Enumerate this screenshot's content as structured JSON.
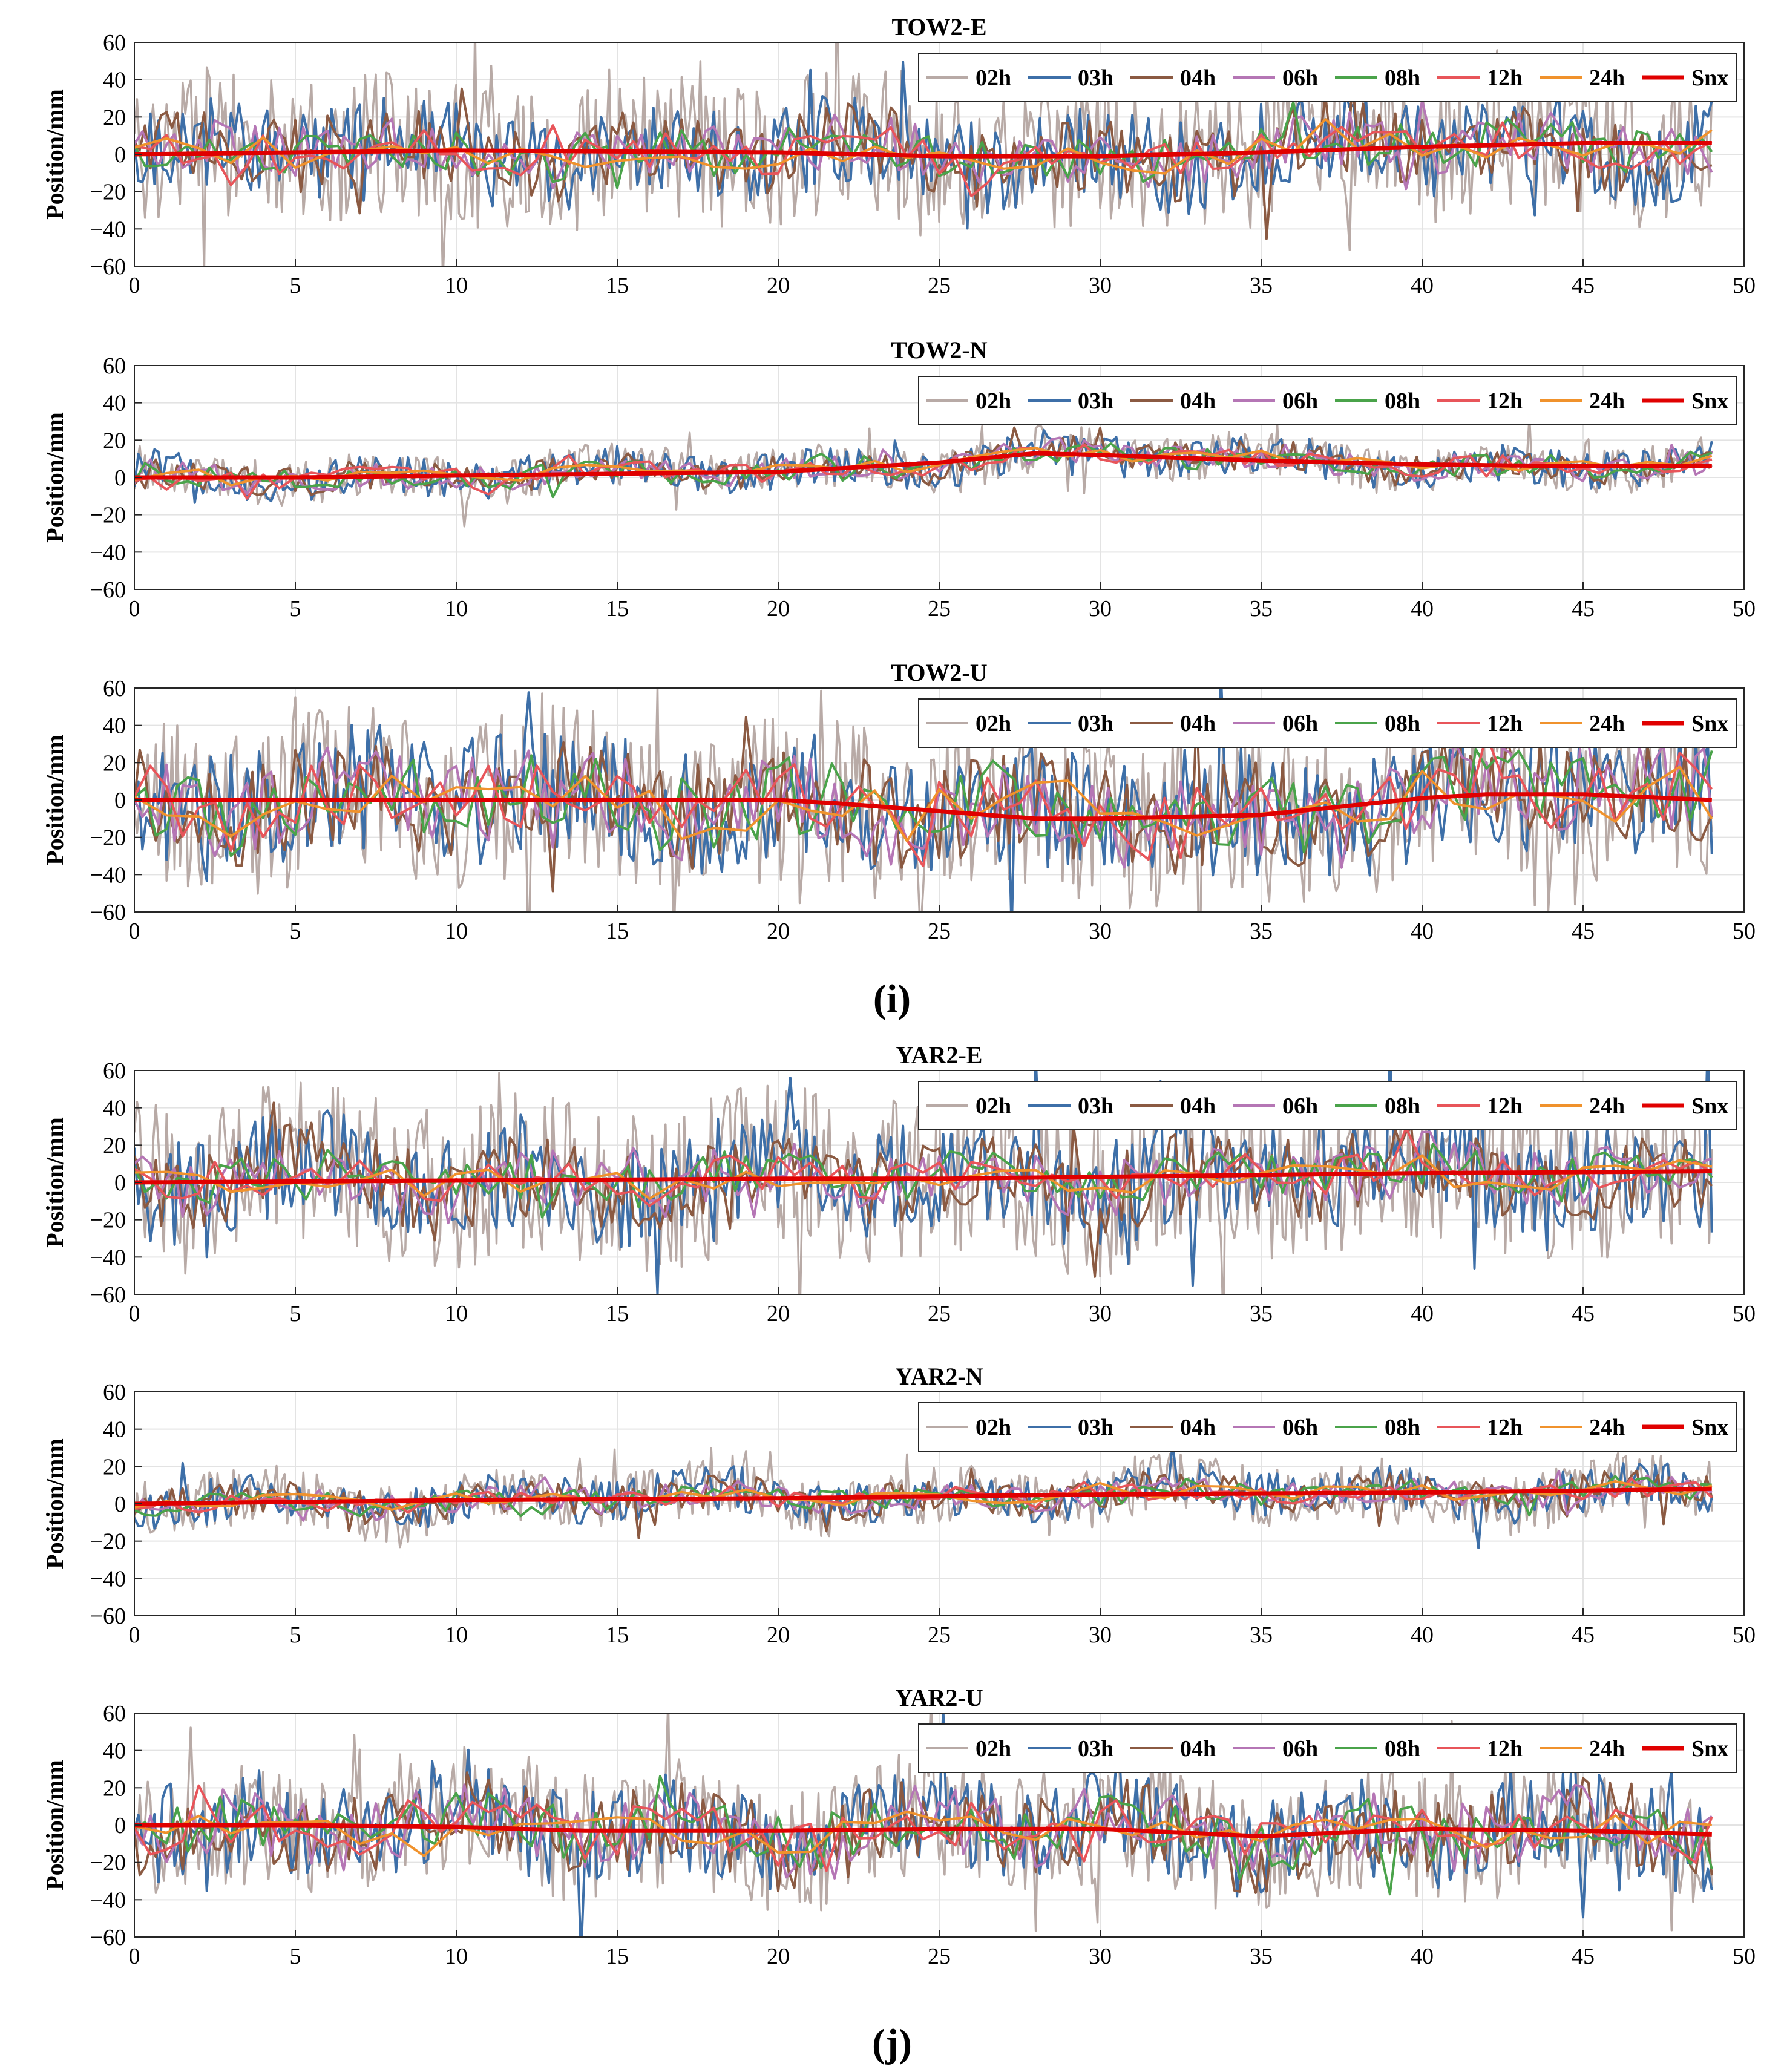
{
  "figure": {
    "group_labels": [
      "(i)",
      "(j)"
    ],
    "legend": [
      {
        "label": "02h",
        "color": "#b8aaa6"
      },
      {
        "label": "03h",
        "color": "#3d6fa8"
      },
      {
        "label": "04h",
        "color": "#8b5a42"
      },
      {
        "label": "06h",
        "color": "#b576b5"
      },
      {
        "label": "08h",
        "color": "#4aa34a"
      },
      {
        "label": "12h",
        "color": "#e8555a"
      },
      {
        "label": "24h",
        "color": "#f0922c"
      },
      {
        "label": "Snx",
        "color": "#e00000"
      }
    ]
  },
  "chart_data": [
    {
      "type": "line",
      "title": "TOW2-E",
      "xlabel": "",
      "ylabel": "Position/mm",
      "xlim": [
        0,
        50
      ],
      "ylim": [
        -60,
        60
      ],
      "xticks": [
        0,
        5,
        10,
        15,
        20,
        25,
        30,
        35,
        40,
        45,
        50
      ],
      "yticks": [
        60,
        40,
        20,
        0,
        -20,
        -40,
        -60
      ],
      "snx": {
        "x": [
          0,
          5,
          10,
          15,
          20,
          25,
          30,
          35,
          40,
          45,
          49
        ],
        "y": [
          0,
          1,
          2,
          1.5,
          1,
          -1,
          -1,
          1,
          4,
          6,
          6
        ]
      },
      "amplitude": {
        "02h": 40,
        "03h": 25,
        "04h": 20,
        "06h": 15,
        "08h": 13,
        "12h": 11,
        "24h": 8
      }
    },
    {
      "type": "line",
      "title": "TOW2-N",
      "xlabel": "",
      "ylabel": "Position/mm",
      "xlim": [
        0,
        50
      ],
      "ylim": [
        -60,
        60
      ],
      "xticks": [
        0,
        5,
        10,
        15,
        20,
        25,
        30,
        35,
        40,
        45,
        50
      ],
      "yticks": [
        60,
        40,
        20,
        0,
        -20,
        -40,
        -60
      ],
      "snx": {
        "x": [
          0,
          5,
          10,
          15,
          20,
          25,
          28,
          30,
          35,
          40,
          45,
          49
        ],
        "y": [
          0,
          0,
          1,
          2,
          3,
          8,
          13,
          12,
          9,
          7,
          6,
          6
        ]
      },
      "amplitude": {
        "02h": 12,
        "03h": 10,
        "04h": 8,
        "06h": 7,
        "08h": 6,
        "12h": 5,
        "24h": 4
      }
    },
    {
      "type": "line",
      "title": "TOW2-U",
      "xlabel": "",
      "ylabel": "Position/mm",
      "xlim": [
        0,
        50
      ],
      "ylim": [
        -60,
        60
      ],
      "xticks": [
        0,
        5,
        10,
        15,
        20,
        25,
        30,
        35,
        40,
        45,
        50
      ],
      "yticks": [
        60,
        40,
        20,
        0,
        -20,
        -40,
        -60
      ],
      "snx": {
        "x": [
          0,
          5,
          10,
          15,
          20,
          22,
          25,
          28,
          30,
          35,
          40,
          42,
          45,
          49
        ],
        "y": [
          0,
          0,
          0,
          0,
          0,
          -2,
          -6,
          -10,
          -10,
          -8,
          1,
          3,
          3,
          0
        ]
      },
      "amplitude": {
        "02h": 45,
        "03h": 35,
        "04h": 28,
        "06h": 24,
        "08h": 22,
        "12h": 20,
        "24h": 15
      }
    },
    {
      "type": "line",
      "title": "YAR2-E",
      "xlabel": "",
      "ylabel": "Position/mm",
      "xlim": [
        0,
        50
      ],
      "ylim": [
        -60,
        60
      ],
      "xticks": [
        0,
        5,
        10,
        15,
        20,
        25,
        30,
        35,
        40,
        45,
        50
      ],
      "yticks": [
        60,
        40,
        20,
        0,
        -20,
        -40,
        -60
      ],
      "snx": {
        "x": [
          0,
          5,
          10,
          15,
          20,
          25,
          30,
          35,
          40,
          45,
          49
        ],
        "y": [
          0,
          0.5,
          1,
          1.5,
          2,
          2,
          3,
          4,
          5,
          5.5,
          6
        ]
      },
      "amplitude": {
        "02h": 45,
        "03h": 30,
        "04h": 22,
        "06h": 15,
        "08h": 12,
        "12h": 10,
        "24h": 7
      }
    },
    {
      "type": "line",
      "title": "YAR2-N",
      "xlabel": "",
      "ylabel": "Position/mm",
      "xlim": [
        0,
        50
      ],
      "ylim": [
        -60,
        60
      ],
      "xticks": [
        0,
        5,
        10,
        15,
        20,
        25,
        30,
        35,
        40,
        45,
        50
      ],
      "yticks": [
        60,
        40,
        20,
        0,
        -20,
        -40,
        -60
      ],
      "snx": {
        "x": [
          0,
          5,
          10,
          15,
          20,
          25,
          30,
          35,
          40,
          45,
          49
        ],
        "y": [
          0,
          1,
          2,
          2.5,
          3,
          4,
          5,
          5.5,
          6,
          7,
          8
        ]
      },
      "amplitude": {
        "02h": 16,
        "03h": 12,
        "04h": 9,
        "06h": 7,
        "08h": 6,
        "12h": 5,
        "24h": 4
      }
    },
    {
      "type": "line",
      "title": "YAR2-U",
      "xlabel": "",
      "ylabel": "Position/mm",
      "xlim": [
        0,
        50
      ],
      "ylim": [
        -60,
        60
      ],
      "xticks": [
        0,
        5,
        10,
        15,
        20,
        25,
        30,
        35,
        40,
        45,
        50
      ],
      "yticks": [
        60,
        40,
        20,
        0,
        -20,
        -40,
        -60
      ],
      "snx": {
        "x": [
          0,
          5,
          10,
          14,
          20,
          25,
          30,
          35,
          40,
          45,
          49
        ],
        "y": [
          0,
          0,
          -1,
          -3,
          -3,
          -2,
          -2,
          -6,
          -2,
          -3,
          -5
        ]
      },
      "amplitude": {
        "02h": 35,
        "03h": 28,
        "04h": 22,
        "06h": 18,
        "08h": 15,
        "12h": 13,
        "24h": 9
      }
    }
  ]
}
